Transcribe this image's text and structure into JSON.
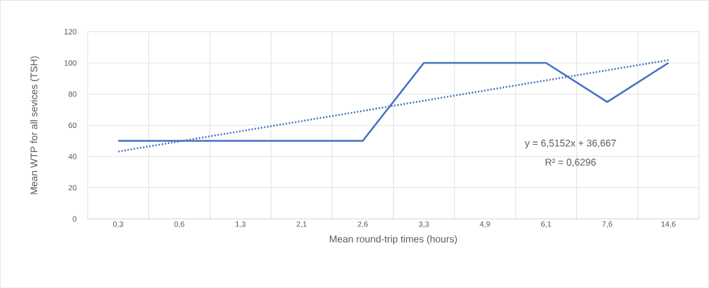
{
  "chart_data": {
    "type": "line",
    "xlabel": "Mean round-trip times (hours)",
    "ylabel": "Mean WTP for all sevices (TSH)",
    "categories": [
      "0,3",
      "0,6",
      "1,3",
      "2,1",
      "2,6",
      "3,3",
      "4,9",
      "6,1",
      "7,6",
      "14,6"
    ],
    "series": [
      {
        "color": "#4472c4",
        "values": [
          50,
          50,
          50,
          50,
          50,
          100,
          100,
          100,
          75,
          100
        ],
        "line_style": "solid"
      },
      {
        "color": "#4472c4",
        "values": [
          43.2,
          49.7,
          56.2,
          62.7,
          69.2,
          75.8,
          82.3,
          88.8,
          95.3,
          101.8
        ],
        "line_style": "dotted"
      }
    ],
    "ylim": [
      0,
      120
    ],
    "yticks": [
      0,
      20,
      40,
      60,
      80,
      100,
      120
    ],
    "grid": true,
    "annotations": [
      "y = 6,5152x + 36,667",
      "R² = 0,6296"
    ]
  }
}
